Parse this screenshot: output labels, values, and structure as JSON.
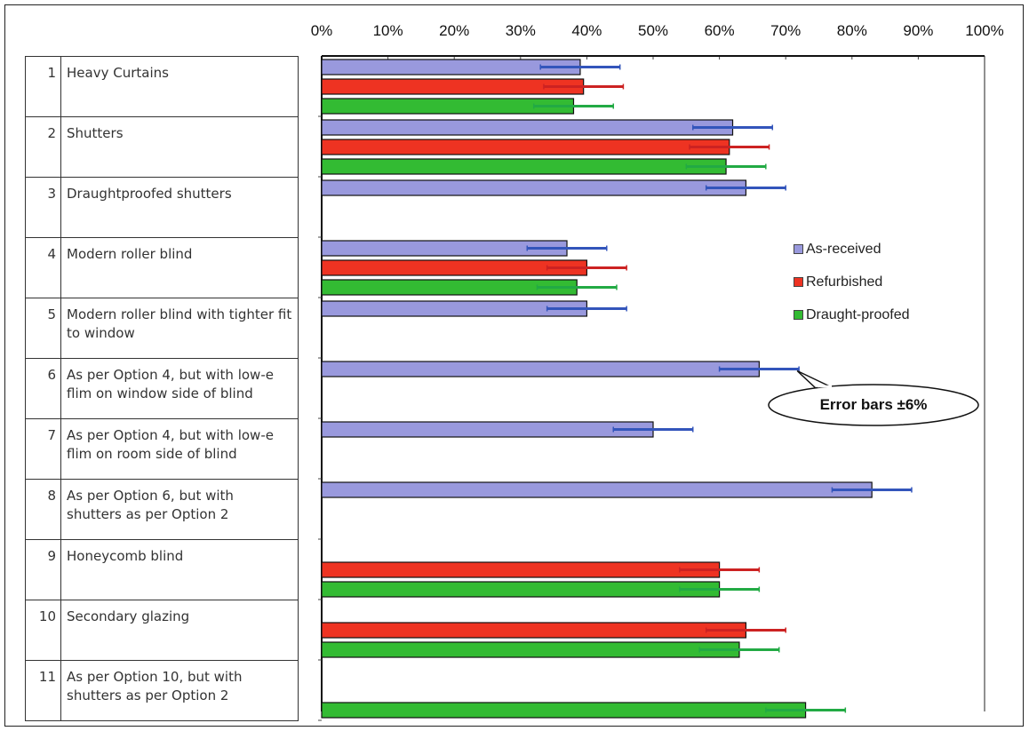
{
  "chart_data": {
    "type": "bar",
    "orientation": "horizontal",
    "x_ticks": [
      "0%",
      "10%",
      "20%",
      "30%",
      "40%",
      "50%",
      "60%",
      "70%",
      "80%",
      "90%",
      "100%"
    ],
    "xlim": [
      0,
      100
    ],
    "categories": [
      {
        "num": "1",
        "label": "Heavy Curtains"
      },
      {
        "num": "2",
        "label": "Shutters"
      },
      {
        "num": "3",
        "label": "Draughtproofed shutters"
      },
      {
        "num": "4",
        "label": "Modern roller blind"
      },
      {
        "num": "5",
        "label": "Modern roller blind with tighter fit to window"
      },
      {
        "num": "6",
        "label": "As per Option 4, but with low-e flim on window side of blind"
      },
      {
        "num": "7",
        "label": "As per Option 4, but with low-e flim on room side of blind"
      },
      {
        "num": "8",
        "label": "As per Option 6, but with shutters as per Option 2"
      },
      {
        "num": "9",
        "label": "Honeycomb blind"
      },
      {
        "num": "10",
        "label": "Secondary glazing"
      },
      {
        "num": "11",
        "label": "As per Option 10, but with shutters as per Option 2"
      }
    ],
    "series": [
      {
        "name": "As-received",
        "color": "#9999dd",
        "values": [
          39,
          62,
          64,
          37,
          40,
          66,
          50,
          83,
          null,
          null,
          null
        ]
      },
      {
        "name": "Refurbished",
        "color": "#ee3322",
        "values": [
          39.5,
          61.5,
          null,
          40,
          null,
          null,
          null,
          null,
          60,
          64,
          null
        ]
      },
      {
        "name": "Draught-proofed",
        "color": "#33bb33",
        "values": [
          38,
          61,
          null,
          38.5,
          null,
          null,
          null,
          null,
          60,
          63,
          73
        ]
      }
    ],
    "error_bar": 6,
    "error_bar_colors": {
      "As-received": "#3355bb",
      "Refurbished": "#cc2222",
      "Draught-proofed": "#22aa44"
    },
    "annotation": "Error bars ±6%",
    "legend_position": "right"
  }
}
